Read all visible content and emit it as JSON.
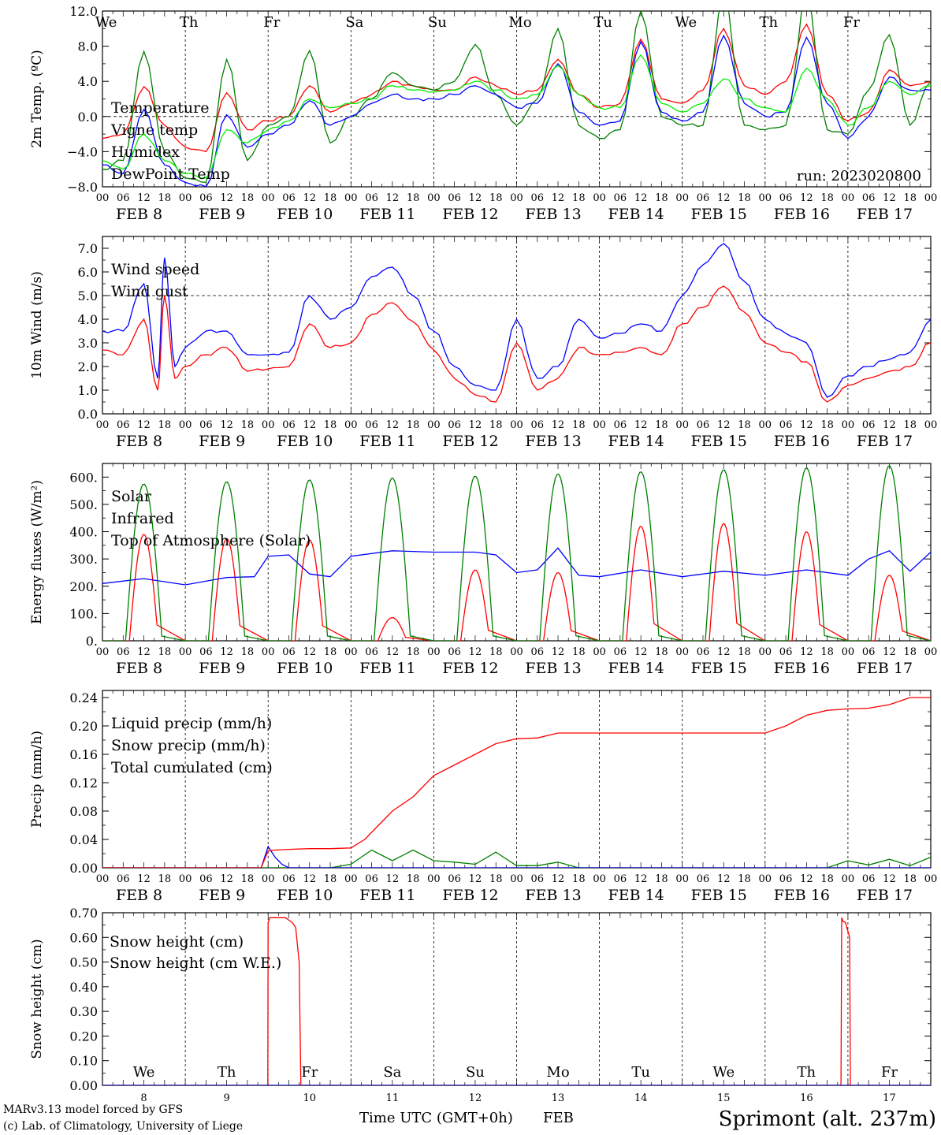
{
  "chart_data": [
    {
      "type": "line",
      "ylabel": "2m Temp. (ºC)",
      "yticks": [
        "12.0",
        "8.0",
        "4.0",
        "0.0",
        "−4.0",
        "−8.0"
      ],
      "ylim": [
        -8,
        12
      ],
      "zero_line": true,
      "annotation": "run: 2023020800",
      "top_day_labels": [
        {
          "text": "We",
          "color": "#000000"
        },
        {
          "text": "Th",
          "color": "#000000"
        },
        {
          "text": "Fr",
          "color": "#000000"
        },
        {
          "text": "Sa",
          "color": "#ff0000"
        },
        {
          "text": "Su",
          "color": "#ff0000"
        },
        {
          "text": "Mo",
          "color": "#000000"
        },
        {
          "text": "Tu",
          "color": "#000000"
        },
        {
          "text": "We",
          "color": "#000000"
        },
        {
          "text": "Th",
          "color": "#000000"
        },
        {
          "text": "Fr",
          "color": "#000000"
        }
      ],
      "x_unit": "hours since 00 UTC FEB 8",
      "series": [
        {
          "name": "Temperature",
          "color": "#ff0000",
          "x": [
            0,
            6,
            12,
            18,
            24,
            30,
            36,
            42,
            48,
            54,
            60,
            66,
            72,
            78,
            84,
            90,
            96,
            102,
            108,
            114,
            120,
            126,
            132,
            138,
            144,
            150,
            156,
            162,
            168,
            174,
            180,
            186,
            192,
            198,
            204,
            210,
            216,
            222,
            228,
            234,
            240
          ],
          "y": [
            -2.5,
            -2,
            3.4,
            -1,
            -3.5,
            -4,
            2.7,
            -1.5,
            -0.5,
            0,
            3.5,
            0.5,
            1.5,
            2.5,
            4,
            3.5,
            3,
            3,
            4.5,
            3.5,
            2.5,
            3,
            6.5,
            2.5,
            1,
            1.5,
            8.8,
            2,
            1.5,
            3,
            10,
            3.5,
            2.5,
            4,
            10.5,
            2.5,
            -0.5,
            0.5,
            5.3,
            3.5,
            4
          ]
        },
        {
          "name": "Vigne temp",
          "color": "#008000",
          "x": [
            0,
            6,
            12,
            18,
            24,
            30,
            36,
            42,
            48,
            54,
            60,
            66,
            72,
            78,
            84,
            90,
            96,
            102,
            108,
            114,
            120,
            126,
            132,
            138,
            144,
            150,
            156,
            162,
            168,
            174,
            180,
            186,
            192,
            198,
            204,
            210,
            216,
            222,
            228,
            234,
            240
          ],
          "y": [
            -6,
            -5,
            7.4,
            -4,
            -7,
            -7.5,
            6.5,
            -5,
            -1,
            0,
            7.5,
            -3,
            0,
            2,
            5,
            3.5,
            3,
            4,
            8.2,
            2.5,
            -1,
            2,
            10,
            -1,
            -2.5,
            -1.5,
            12,
            0,
            -1,
            -1,
            14,
            -1,
            -1.5,
            -1,
            14,
            -1.5,
            -2,
            3,
            9.3,
            -1,
            4
          ]
        },
        {
          "name": "Humidex",
          "color": "#0000ff",
          "x": [
            0,
            6,
            12,
            18,
            24,
            30,
            36,
            42,
            48,
            54,
            60,
            66,
            72,
            78,
            84,
            90,
            96,
            102,
            108,
            114,
            120,
            126,
            132,
            138,
            144,
            150,
            156,
            162,
            168,
            174,
            180,
            186,
            192,
            198,
            204,
            210,
            216,
            222,
            228,
            234,
            240
          ],
          "y": [
            -5.5,
            -6.5,
            0.8,
            -5.5,
            -7.5,
            -8,
            0.2,
            -3.5,
            -2,
            -1,
            1.8,
            -1,
            0,
            1.5,
            2.5,
            2,
            2,
            2.5,
            3.5,
            2.5,
            1,
            1.5,
            6,
            0.5,
            -1,
            -0.5,
            8.5,
            0.5,
            -0.5,
            0.5,
            9.2,
            1.5,
            0,
            0.5,
            9,
            1.5,
            -2.5,
            0,
            4.5,
            3,
            3
          ]
        },
        {
          "name": "DewPoint Temp",
          "color": "#00ee00",
          "x": [
            0,
            6,
            12,
            18,
            24,
            30,
            36,
            42,
            48,
            54,
            60,
            66,
            72,
            78,
            84,
            90,
            96,
            102,
            108,
            114,
            120,
            126,
            132,
            138,
            144,
            150,
            156,
            162,
            168,
            174,
            180,
            186,
            192,
            198,
            204,
            210,
            216,
            222,
            228,
            234,
            240
          ],
          "y": [
            -5,
            -6,
            -2,
            -5,
            -6.5,
            -7,
            -1.5,
            -3,
            -1.5,
            -0.5,
            2,
            1,
            1.5,
            2,
            3.5,
            3,
            2.8,
            3,
            4,
            3,
            2,
            2.5,
            5.8,
            2.5,
            1,
            1,
            7,
            1.5,
            0.5,
            1.5,
            4.3,
            2,
            1,
            0.5,
            5.5,
            2,
            -1,
            1,
            4,
            2.5,
            3.5
          ]
        }
      ]
    },
    {
      "type": "line",
      "ylabel": "10m Wind (m/s)",
      "yticks": [
        "7.0",
        "6.0",
        "5.0",
        "4.0",
        "3.0",
        "2.0",
        "1.0",
        "0.0"
      ],
      "ylim": [
        0,
        7.5
      ],
      "ref_line": 5,
      "series": [
        {
          "name": "Wind speed",
          "color": "#ff0000",
          "x": [
            0,
            6,
            12,
            16,
            18,
            21,
            24,
            30,
            36,
            42,
            48,
            54,
            60,
            66,
            72,
            78,
            84,
            90,
            96,
            102,
            108,
            114,
            120,
            126,
            132,
            138,
            144,
            150,
            156,
            162,
            168,
            174,
            180,
            186,
            192,
            198,
            204,
            210,
            216,
            222,
            228,
            234,
            240
          ],
          "y": [
            2.7,
            2.5,
            4,
            1,
            5,
            1.5,
            2,
            2.5,
            2.8,
            1.8,
            1.9,
            2,
            3.8,
            2.8,
            3,
            4.2,
            4.7,
            3.9,
            2.7,
            1.5,
            0.8,
            0.5,
            3,
            1,
            1.5,
            2.8,
            2.5,
            2.6,
            2.8,
            2.5,
            3.8,
            4.5,
            5.4,
            4.3,
            3,
            2.6,
            2.2,
            0.5,
            1.2,
            1.5,
            1.8,
            2,
            3
          ]
        },
        {
          "name": "Wind gust",
          "color": "#0000ff",
          "x": [
            0,
            6,
            12,
            16,
            18,
            21,
            24,
            30,
            36,
            42,
            48,
            54,
            60,
            66,
            72,
            78,
            84,
            90,
            96,
            102,
            108,
            114,
            120,
            126,
            132,
            138,
            144,
            150,
            156,
            162,
            168,
            174,
            180,
            186,
            192,
            198,
            204,
            210,
            216,
            222,
            228,
            234,
            240
          ],
          "y": [
            3.5,
            3.5,
            5.5,
            1.5,
            6.6,
            2,
            2.8,
            3.5,
            3.5,
            2.5,
            2.5,
            2.6,
            5,
            4,
            4.5,
            5.8,
            6.2,
            5,
            3.5,
            2,
            1.2,
            1,
            4,
            1.5,
            2,
            4,
            3.2,
            3.4,
            3.8,
            3.5,
            5,
            6.3,
            7.2,
            5.6,
            4,
            3.4,
            3,
            0.7,
            1.6,
            2,
            2.3,
            2.6,
            4
          ]
        }
      ]
    },
    {
      "type": "line",
      "ylabel": "Energy fluxes (W/m²)",
      "yticks": [
        "600.",
        "500.",
        "400.",
        "300.",
        "200.",
        "100.",
        "0."
      ],
      "ylim": [
        0,
        650
      ],
      "series": [
        {
          "name": "Solar",
          "color": "#ff0000",
          "peaks": [
            {
              "day": 0,
              "value": 390
            },
            {
              "day": 1,
              "value": 375
            },
            {
              "day": 2,
              "value": 370
            },
            {
              "day": 3,
              "value": 85
            },
            {
              "day": 4,
              "value": 260
            },
            {
              "day": 5,
              "value": 250
            },
            {
              "day": 6,
              "value": 420
            },
            {
              "day": 7,
              "value": 430
            },
            {
              "day": 8,
              "value": 400
            },
            {
              "day": 9,
              "value": 240
            }
          ]
        },
        {
          "name": "Infrared",
          "color": "#0000ff",
          "x": [
            0,
            12,
            24,
            36,
            44,
            48,
            54,
            60,
            66,
            72,
            84,
            96,
            108,
            114,
            120,
            126,
            132,
            138,
            144,
            156,
            168,
            180,
            192,
            204,
            216,
            222,
            228,
            234,
            240
          ],
          "y": [
            210,
            228,
            205,
            232,
            235,
            310,
            315,
            245,
            235,
            310,
            330,
            325,
            325,
            315,
            250,
            260,
            340,
            240,
            235,
            260,
            235,
            255,
            240,
            260,
            240,
            300,
            330,
            255,
            325
          ]
        },
        {
          "name": "Top of Atmosphere (Solar)",
          "color": "#008000",
          "peaks": [
            {
              "day": 0,
              "value": 575
            },
            {
              "day": 1,
              "value": 583
            },
            {
              "day": 2,
              "value": 590
            },
            {
              "day": 3,
              "value": 597
            },
            {
              "day": 4,
              "value": 604
            },
            {
              "day": 5,
              "value": 612
            },
            {
              "day": 6,
              "value": 620
            },
            {
              "day": 7,
              "value": 627
            },
            {
              "day": 8,
              "value": 634
            },
            {
              "day": 9,
              "value": 642
            }
          ]
        }
      ]
    },
    {
      "type": "line",
      "ylabel": "Precip (mm/h)",
      "yticks": [
        "0.24",
        "0.20",
        "0.16",
        "0.12",
        "0.08",
        "0.04",
        "0.00"
      ],
      "ylim": [
        0,
        0.25
      ],
      "series": [
        {
          "name": "Liquid precip (mm/h)",
          "color": "#008000",
          "x": [
            0,
            60,
            66,
            72,
            78,
            84,
            90,
            96,
            102,
            108,
            114,
            120,
            126,
            132,
            138,
            144,
            192,
            198,
            204,
            210,
            216,
            222,
            228,
            234,
            240
          ],
          "y": [
            0,
            0,
            0,
            0.005,
            0.025,
            0.01,
            0.025,
            0.01,
            0.008,
            0.005,
            0.022,
            0.003,
            0.003,
            0.008,
            0,
            0,
            0,
            0,
            0,
            0,
            0.01,
            0.004,
            0.012,
            0.003,
            0.015
          ]
        },
        {
          "name": "Snow precip (mm/h)",
          "color": "#0000ff",
          "x": [
            0,
            46,
            48,
            50,
            52,
            54,
            240
          ],
          "y": [
            0,
            0,
            0.03,
            0.015,
            0.005,
            0,
            0
          ]
        },
        {
          "name": "Total cumulated (cm)",
          "color": "#ff0000",
          "x": [
            0,
            46,
            48,
            50,
            54,
            60,
            66,
            72,
            76,
            80,
            84,
            90,
            96,
            102,
            108,
            114,
            120,
            126,
            132,
            144,
            156,
            168,
            180,
            192,
            198,
            204,
            210,
            216,
            222,
            228,
            234,
            240
          ],
          "y": [
            0,
            0,
            0.024,
            0.025,
            0.026,
            0.027,
            0.027,
            0.028,
            0.04,
            0.06,
            0.08,
            0.1,
            0.13,
            0.145,
            0.16,
            0.175,
            0.182,
            0.183,
            0.19,
            0.19,
            0.19,
            0.19,
            0.19,
            0.19,
            0.2,
            0.215,
            0.222,
            0.224,
            0.225,
            0.23,
            0.24,
            0.24
          ]
        }
      ]
    },
    {
      "type": "line",
      "ylabel": "Snow height (cm)",
      "yticks": [
        "0.70",
        "0.60",
        "0.50",
        "0.40",
        "0.30",
        "0.20",
        "0.10",
        "0.00"
      ],
      "ylim": [
        0,
        0.7
      ],
      "bottom_day_labels": [
        {
          "text": "We",
          "color": "#000000"
        },
        {
          "text": "Th",
          "color": "#000000"
        },
        {
          "text": "Fr",
          "color": "#000000"
        },
        {
          "text": "Sa",
          "color": "#ff0000"
        },
        {
          "text": "Su",
          "color": "#ff0000"
        },
        {
          "text": "Mo",
          "color": "#000000"
        },
        {
          "text": "Tu",
          "color": "#000000"
        },
        {
          "text": "We",
          "color": "#000000"
        },
        {
          "text": "Th",
          "color": "#000000"
        },
        {
          "text": "Fr",
          "color": "#000000"
        }
      ],
      "bottom_date_numbers": [
        "8",
        "9",
        "10",
        "11",
        "12",
        "13",
        "14",
        "15",
        "16",
        "17"
      ],
      "series": [
        {
          "name": "Snow height (cm)",
          "color": "#ff0000",
          "x": [
            0,
            47.9,
            48,
            48.5,
            53,
            54,
            55,
            56,
            57,
            57.5,
            214,
            214.2,
            214.6,
            215.3,
            215.7,
            216.5,
            216.7,
            240
          ],
          "y": [
            0,
            0,
            0.66,
            0.68,
            0.68,
            0.67,
            0.66,
            0.64,
            0.5,
            0,
            0,
            0.68,
            0.665,
            0.66,
            0.64,
            0.6,
            0,
            0
          ]
        },
        {
          "name": "Snow height (cm W.E.)",
          "color": "#0000ff",
          "x": [
            0,
            240
          ],
          "y": [
            0,
            0
          ]
        }
      ]
    }
  ],
  "x_axis": {
    "hour_labels": [
      "00",
      "06",
      "12",
      "18"
    ],
    "date_labels": [
      "FEB 8",
      "FEB 9",
      "FEB 10",
      "FEB 11",
      "FEB 12",
      "FEB 13",
      "FEB 14",
      "FEB 15",
      "FEB 16",
      "FEB 17"
    ],
    "end_label": "00",
    "bottom_label_prefix": "Time UTC (GMT+0h)",
    "bottom_label_month": "FEB"
  },
  "credits": {
    "model": "MARv3.13 model forced by GFS",
    "lab": "(c) Lab. of Climatology, University of Liege",
    "color": "#ff0000"
  },
  "station": {
    "label": "Sprimont (alt. 237m)",
    "color": "#3333ff"
  }
}
